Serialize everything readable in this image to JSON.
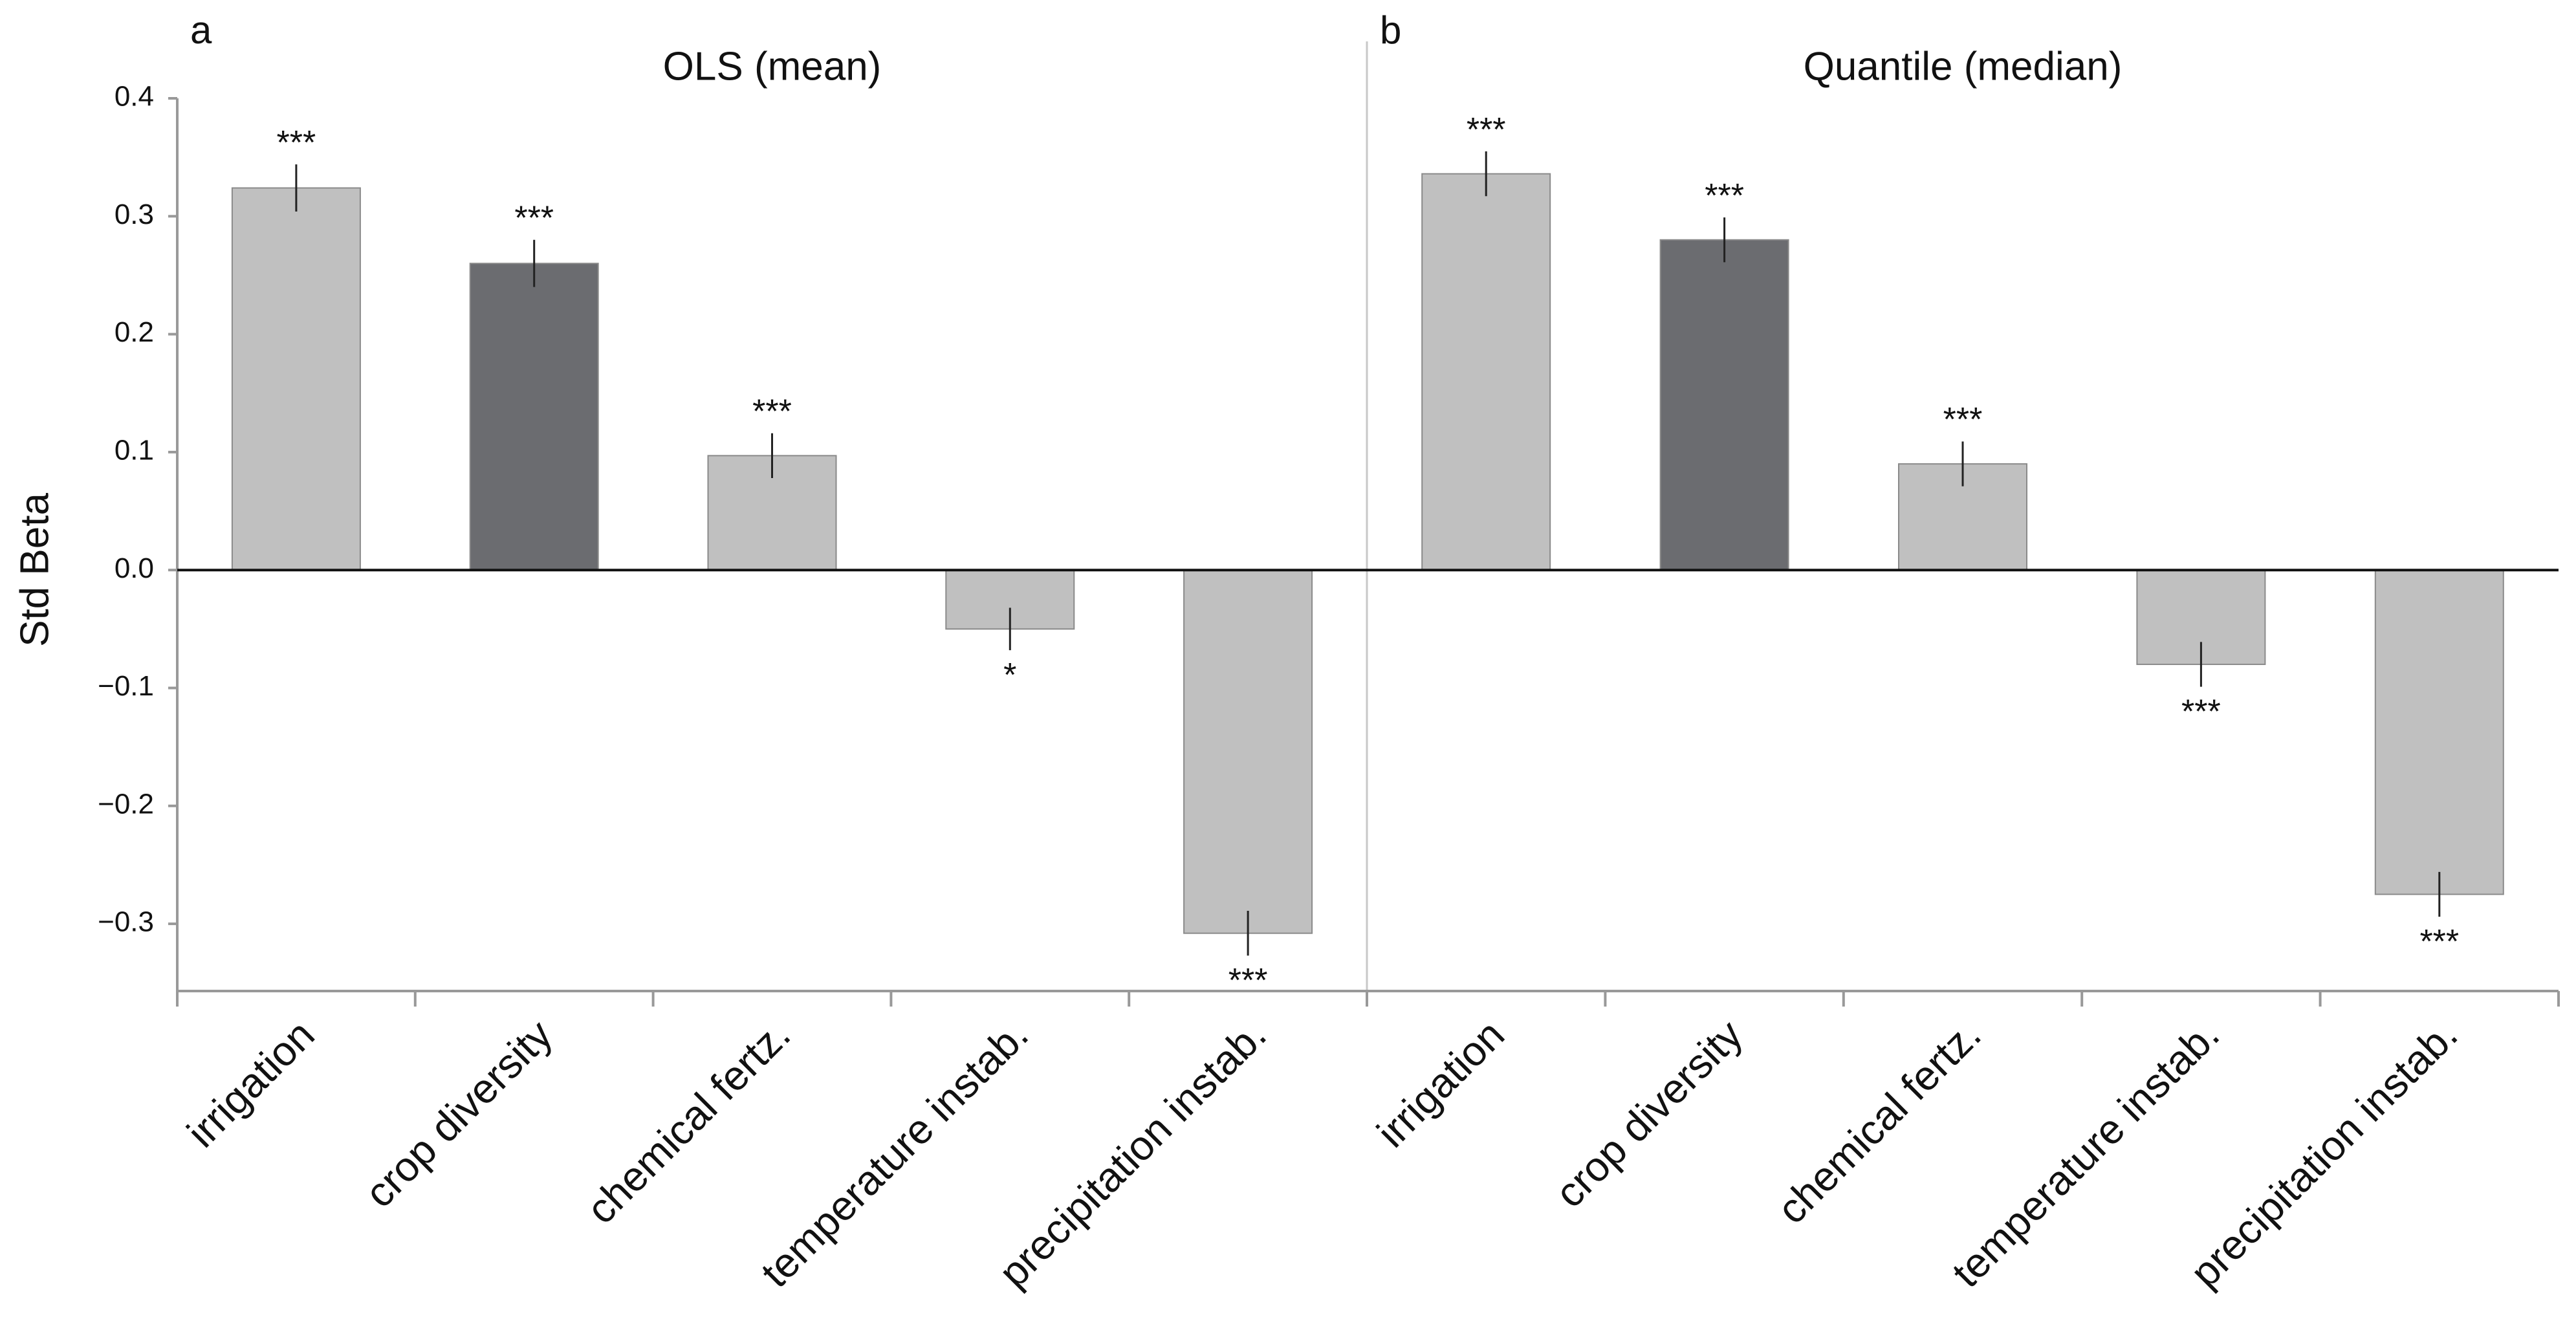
{
  "chart_data": [
    {
      "type": "bar",
      "panel": "a",
      "title": "OLS (mean)",
      "y_label": "Std Beta",
      "categories": [
        "irrigation",
        "crop diversity",
        "chemical fertz.",
        "temperature instab.",
        "precipitation instab."
      ],
      "values": [
        0.324,
        0.26,
        0.097,
        -0.05,
        -0.308
      ],
      "errors": [
        0.02,
        0.02,
        0.019,
        0.018,
        0.019
      ],
      "annotations": [
        "***",
        "***",
        "***",
        "*",
        "***"
      ],
      "colors": [
        "#c0c0c0",
        "#6b6c70",
        "#c0c0c0",
        "#c0c0c0",
        "#c0c0c0"
      ],
      "ylim": [
        -0.357,
        0.4
      ],
      "yticks": [
        0.4,
        0.3,
        0.2,
        0.1,
        {
          "value": 0,
          "label": "0.0"
        },
        {
          "value": -0.1,
          "label": "−0.1"
        },
        {
          "value": -0.2,
          "label": "−0.2"
        },
        {
          "value": -0.3,
          "label": "−0.3"
        }
      ]
    },
    {
      "type": "bar",
      "panel": "b",
      "title": "Quantile (median)",
      "categories": [
        "irrigation",
        "crop diversity",
        "chemical fertz.",
        "temperature instab.",
        "precipitation instab."
      ],
      "values": [
        0.336,
        0.28,
        0.09,
        -0.08,
        -0.275
      ],
      "errors": [
        0.019,
        0.019,
        0.019,
        0.019,
        0.019
      ],
      "annotations": [
        "***",
        "***",
        "***",
        "***",
        "***"
      ],
      "colors": [
        "#c0c0c0",
        "#6b6c70",
        "#c0c0c0",
        "#c0c0c0",
        "#c0c0c0"
      ],
      "ylim": [
        -0.357,
        0.4
      ]
    }
  ]
}
